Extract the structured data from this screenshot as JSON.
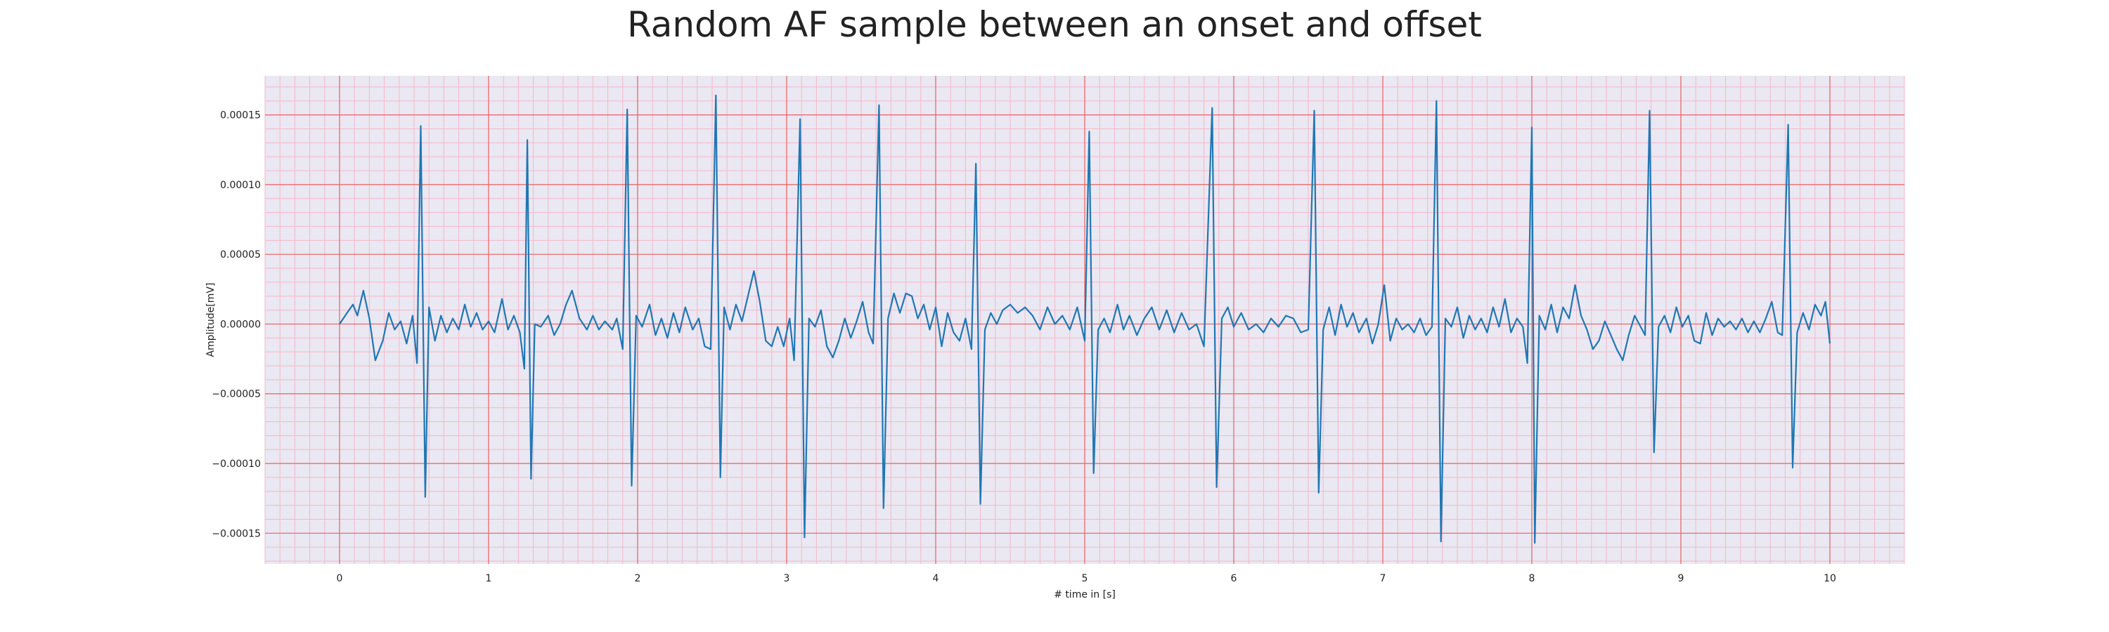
{
  "chart_data": {
    "type": "line",
    "title": "Random AF sample between an onset and offset",
    "xlabel": "# time in [s]",
    "ylabel": "Amplitude[mV]",
    "xlim": [
      -0.5,
      10.5
    ],
    "ylim": [
      -0.000172,
      0.000178
    ],
    "x_ticks": [
      0,
      1,
      2,
      3,
      4,
      5,
      6,
      7,
      8,
      9,
      10
    ],
    "x_tick_labels": [
      "0",
      "1",
      "2",
      "3",
      "4",
      "5",
      "6",
      "7",
      "8",
      "9",
      "10"
    ],
    "y_ticks": [
      0.00015,
      0.0001,
      5e-05,
      0.0,
      -5e-05,
      -0.0001,
      -0.00015
    ],
    "y_tick_labels": [
      "0.00015",
      "0.00010",
      "0.00005",
      "0.00000",
      "−0.00005",
      "−0.00010",
      "−0.00015"
    ],
    "grid": true,
    "minor_grid": true,
    "colors": {
      "line": "#1f77b4",
      "major_grid": "#e86060",
      "minor_grid": "#f3b8c8",
      "background": "#eae8f2"
    },
    "series": [
      {
        "points": [
          [
            0.0,
            0.0
          ],
          [
            0.05,
            8e-06
          ],
          [
            0.09,
            1.4e-05
          ],
          [
            0.12,
            6e-06
          ],
          [
            0.16,
            2.4e-05
          ],
          [
            0.2,
            4e-06
          ],
          [
            0.24,
            -2.6e-05
          ],
          [
            0.29,
            -1.2e-05
          ],
          [
            0.33,
            8e-06
          ],
          [
            0.37,
            -4e-06
          ],
          [
            0.41,
            2e-06
          ],
          [
            0.45,
            -1.4e-05
          ],
          [
            0.49,
            6e-06
          ],
          [
            0.52,
            -2.8e-05
          ],
          [
            0.545,
            0.000142
          ],
          [
            0.575,
            -0.000124
          ],
          [
            0.6,
            1.2e-05
          ],
          [
            0.64,
            -1.2e-05
          ],
          [
            0.68,
            6e-06
          ],
          [
            0.72,
            -6e-06
          ],
          [
            0.76,
            4e-06
          ],
          [
            0.8,
            -4e-06
          ],
          [
            0.84,
            1.4e-05
          ],
          [
            0.88,
            -2e-06
          ],
          [
            0.92,
            8e-06
          ],
          [
            0.96,
            -4e-06
          ],
          [
            1.0,
            2e-06
          ],
          [
            1.04,
            -6e-06
          ],
          [
            1.09,
            1.8e-05
          ],
          [
            1.13,
            -4e-06
          ],
          [
            1.17,
            6e-06
          ],
          [
            1.21,
            -6e-06
          ],
          [
            1.24,
            -3.2e-05
          ],
          [
            1.26,
            0.000132
          ],
          [
            1.285,
            -0.000111
          ],
          [
            1.31,
            0.0
          ],
          [
            1.35,
            -2e-06
          ],
          [
            1.4,
            6e-06
          ],
          [
            1.44,
            -8e-06
          ],
          [
            1.48,
            0.0
          ],
          [
            1.52,
            1.4e-05
          ],
          [
            1.56,
            2.4e-05
          ],
          [
            1.61,
            4e-06
          ],
          [
            1.66,
            -4e-06
          ],
          [
            1.7,
            6e-06
          ],
          [
            1.74,
            -4e-06
          ],
          [
            1.78,
            2e-06
          ],
          [
            1.83,
            -4e-06
          ],
          [
            1.86,
            4e-06
          ],
          [
            1.9,
            -1.8e-05
          ],
          [
            1.93,
            0.000154
          ],
          [
            1.96,
            -0.000116
          ],
          [
            1.99,
            6e-06
          ],
          [
            2.03,
            -2e-06
          ],
          [
            2.08,
            1.4e-05
          ],
          [
            2.12,
            -8e-06
          ],
          [
            2.16,
            4e-06
          ],
          [
            2.2,
            -1e-05
          ],
          [
            2.24,
            8e-06
          ],
          [
            2.28,
            -6e-06
          ],
          [
            2.32,
            1.2e-05
          ],
          [
            2.37,
            -4e-06
          ],
          [
            2.41,
            4e-06
          ],
          [
            2.45,
            -1.6e-05
          ],
          [
            2.49,
            -1.8e-05
          ],
          [
            2.525,
            0.000164
          ],
          [
            2.555,
            -0.00011
          ],
          [
            2.58,
            1.2e-05
          ],
          [
            2.62,
            -4e-06
          ],
          [
            2.66,
            1.4e-05
          ],
          [
            2.7,
            2e-06
          ],
          [
            2.74,
            2e-05
          ],
          [
            2.78,
            3.8e-05
          ],
          [
            2.82,
            1.6e-05
          ],
          [
            2.86,
            -1.2e-05
          ],
          [
            2.9,
            -1.6e-05
          ],
          [
            2.94,
            -2e-06
          ],
          [
            2.98,
            -1.6e-05
          ],
          [
            3.02,
            4e-06
          ],
          [
            3.05,
            -2.6e-05
          ],
          [
            3.09,
            0.000147
          ],
          [
            3.12,
            -0.000153
          ],
          [
            3.15,
            4e-06
          ],
          [
            3.19,
            -2e-06
          ],
          [
            3.23,
            1e-05
          ],
          [
            3.27,
            -1.6e-05
          ],
          [
            3.31,
            -2.4e-05
          ],
          [
            3.35,
            -1.2e-05
          ],
          [
            3.39,
            4e-06
          ],
          [
            3.43,
            -1e-05
          ],
          [
            3.47,
            2e-06
          ],
          [
            3.51,
            1.6e-05
          ],
          [
            3.55,
            -6e-06
          ],
          [
            3.58,
            -1.4e-05
          ],
          [
            3.62,
            0.000157
          ],
          [
            3.65,
            -0.000132
          ],
          [
            3.68,
            4e-06
          ],
          [
            3.72,
            2.2e-05
          ],
          [
            3.76,
            8e-06
          ],
          [
            3.8,
            2.2e-05
          ],
          [
            3.84,
            2e-05
          ],
          [
            3.88,
            4e-06
          ],
          [
            3.92,
            1.4e-05
          ],
          [
            3.96,
            -4e-06
          ],
          [
            4.0,
            1.2e-05
          ],
          [
            4.04,
            -1.6e-05
          ],
          [
            4.08,
            8e-06
          ],
          [
            4.12,
            -6e-06
          ],
          [
            4.16,
            -1.2e-05
          ],
          [
            4.2,
            4e-06
          ],
          [
            4.24,
            -1.8e-05
          ],
          [
            4.27,
            0.000115
          ],
          [
            4.3,
            -0.000129
          ],
          [
            4.33,
            -4e-06
          ],
          [
            4.37,
            8e-06
          ],
          [
            4.41,
            0.0
          ],
          [
            4.45,
            1e-05
          ],
          [
            4.5,
            1.4e-05
          ],
          [
            4.55,
            8e-06
          ],
          [
            4.6,
            1.2e-05
          ],
          [
            4.65,
            6e-06
          ],
          [
            4.7,
            -4e-06
          ],
          [
            4.75,
            1.2e-05
          ],
          [
            4.8,
            0.0
          ],
          [
            4.85,
            6e-06
          ],
          [
            4.9,
            -4e-06
          ],
          [
            4.95,
            1.2e-05
          ],
          [
            5.0,
            -1.2e-05
          ],
          [
            5.03,
            0.000138
          ],
          [
            5.06,
            -0.000107
          ],
          [
            5.09,
            -4e-06
          ],
          [
            5.13,
            4e-06
          ],
          [
            5.17,
            -6e-06
          ],
          [
            5.22,
            1.4e-05
          ],
          [
            5.26,
            -4e-06
          ],
          [
            5.3,
            6e-06
          ],
          [
            5.35,
            -8e-06
          ],
          [
            5.4,
            4e-06
          ],
          [
            5.45,
            1.2e-05
          ],
          [
            5.5,
            -4e-06
          ],
          [
            5.55,
            1e-05
          ],
          [
            5.6,
            -6e-06
          ],
          [
            5.65,
            8e-06
          ],
          [
            5.7,
            -4e-06
          ],
          [
            5.75,
            0.0
          ],
          [
            5.8,
            -1.6e-05
          ],
          [
            5.855,
            0.000155
          ],
          [
            5.885,
            -0.000117
          ],
          [
            5.92,
            4e-06
          ],
          [
            5.96,
            1.2e-05
          ],
          [
            6.0,
            -2e-06
          ],
          [
            6.05,
            8e-06
          ],
          [
            6.1,
            -4e-06
          ],
          [
            6.15,
            0.0
          ],
          [
            6.2,
            -6e-06
          ],
          [
            6.25,
            4e-06
          ],
          [
            6.3,
            -2e-06
          ],
          [
            6.35,
            6e-06
          ],
          [
            6.4,
            4e-06
          ],
          [
            6.45,
            -6e-06
          ],
          [
            6.5,
            -4e-06
          ],
          [
            6.54,
            0.000153
          ],
          [
            6.57,
            -0.000121
          ],
          [
            6.6,
            -4e-06
          ],
          [
            6.64,
            1.2e-05
          ],
          [
            6.68,
            -8e-06
          ],
          [
            6.72,
            1.4e-05
          ],
          [
            6.76,
            -2e-06
          ],
          [
            6.8,
            8e-06
          ],
          [
            6.84,
            -6e-06
          ],
          [
            6.89,
            4e-06
          ],
          [
            6.93,
            -1.4e-05
          ],
          [
            6.97,
            0.0
          ],
          [
            7.01,
            2.8e-05
          ],
          [
            7.05,
            -1.2e-05
          ],
          [
            7.09,
            4e-06
          ],
          [
            7.13,
            -4e-06
          ],
          [
            7.17,
            0.0
          ],
          [
            7.21,
            -6e-06
          ],
          [
            7.25,
            4e-06
          ],
          [
            7.29,
            -8e-06
          ],
          [
            7.33,
            -2e-06
          ],
          [
            7.36,
            0.00016
          ],
          [
            7.39,
            -0.000156
          ],
          [
            7.42,
            4e-06
          ],
          [
            7.46,
            -2e-06
          ],
          [
            7.5,
            1.2e-05
          ],
          [
            7.54,
            -1e-05
          ],
          [
            7.58,
            6e-06
          ],
          [
            7.62,
            -4e-06
          ],
          [
            7.66,
            4e-06
          ],
          [
            7.7,
            -6e-06
          ],
          [
            7.74,
            1.2e-05
          ],
          [
            7.78,
            -2e-06
          ],
          [
            7.82,
            1.8e-05
          ],
          [
            7.86,
            -6e-06
          ],
          [
            7.9,
            4e-06
          ],
          [
            7.94,
            -2e-06
          ],
          [
            7.97,
            -2.8e-05
          ],
          [
            8.0,
            0.000141
          ],
          [
            8.02,
            -0.000157
          ],
          [
            8.05,
            6e-06
          ],
          [
            8.09,
            -4e-06
          ],
          [
            8.13,
            1.4e-05
          ],
          [
            8.17,
            -6e-06
          ],
          [
            8.21,
            1.2e-05
          ],
          [
            8.25,
            4e-06
          ],
          [
            8.29,
            2.8e-05
          ],
          [
            8.33,
            6e-06
          ],
          [
            8.37,
            -4e-06
          ],
          [
            8.41,
            -1.8e-05
          ],
          [
            8.45,
            -1.2e-05
          ],
          [
            8.49,
            2e-06
          ],
          [
            8.53,
            -8e-06
          ],
          [
            8.57,
            -1.8e-05
          ],
          [
            8.61,
            -2.6e-05
          ],
          [
            8.65,
            -8e-06
          ],
          [
            8.69,
            6e-06
          ],
          [
            8.73,
            -2e-06
          ],
          [
            8.76,
            -8e-06
          ],
          [
            8.79,
            0.000153
          ],
          [
            8.82,
            -9.2e-05
          ],
          [
            8.85,
            -2e-06
          ],
          [
            8.89,
            6e-06
          ],
          [
            8.93,
            -6e-06
          ],
          [
            8.97,
            1.2e-05
          ],
          [
            9.01,
            -2e-06
          ],
          [
            9.05,
            6e-06
          ],
          [
            9.09,
            -1.2e-05
          ],
          [
            9.13,
            -1.4e-05
          ],
          [
            9.17,
            8e-06
          ],
          [
            9.21,
            -8e-06
          ],
          [
            9.25,
            4e-06
          ],
          [
            9.29,
            -2e-06
          ],
          [
            9.33,
            2e-06
          ],
          [
            9.37,
            -4e-06
          ],
          [
            9.41,
            4e-06
          ],
          [
            9.45,
            -6e-06
          ],
          [
            9.49,
            2e-06
          ],
          [
            9.53,
            -6e-06
          ],
          [
            9.57,
            4e-06
          ],
          [
            9.61,
            1.6e-05
          ],
          [
            9.65,
            -6e-06
          ],
          [
            9.68,
            -8e-06
          ],
          [
            9.72,
            0.000143
          ],
          [
            9.75,
            -0.000103
          ],
          [
            9.78,
            -6e-06
          ],
          [
            9.82,
            8e-06
          ],
          [
            9.86,
            -4e-06
          ],
          [
            9.9,
            1.4e-05
          ],
          [
            9.94,
            6e-06
          ],
          [
            9.97,
            1.6e-05
          ],
          [
            10.0,
            -1.4e-05
          ]
        ]
      }
    ]
  }
}
